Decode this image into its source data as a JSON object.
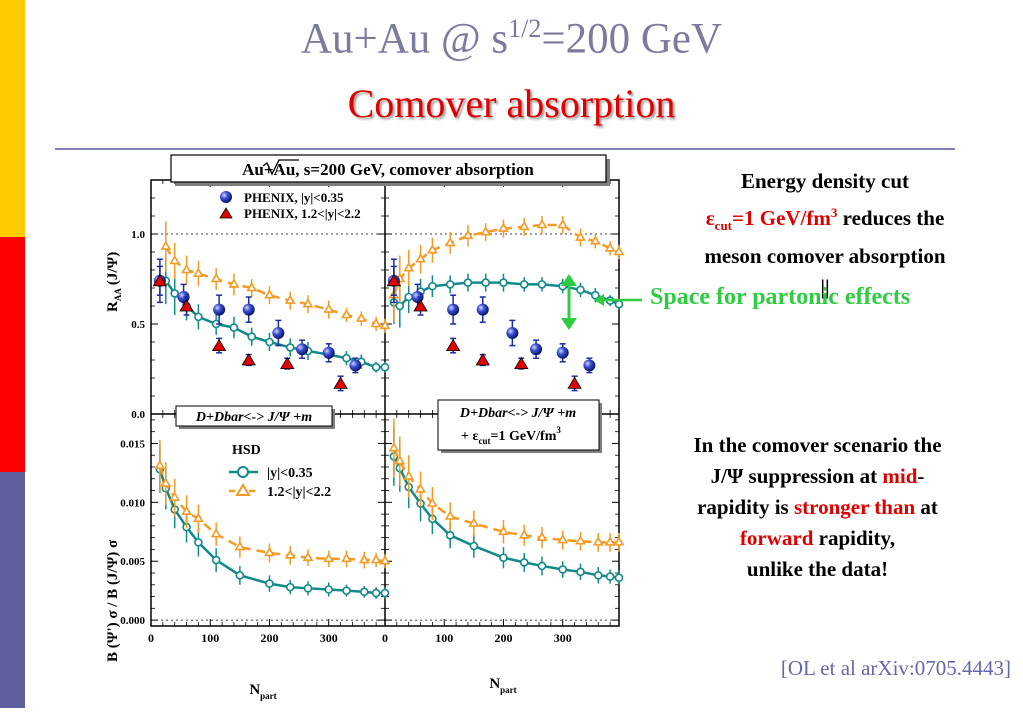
{
  "colors": {
    "stripe_yellow": "#ffcc00",
    "stripe_red": "#ff0000",
    "stripe_blue": "#5f5f9f",
    "title_gray": "#7b7b9e",
    "title_red": "#e00000",
    "teal": "#128a8a",
    "orange": "#f59a22",
    "navy": "#1a2ea0",
    "green": "#2ecc40"
  },
  "slide": {
    "title_line1_prefix": "Au+Au @ s",
    "title_line1_sup": "1/2",
    "title_line1_suffix": "=200 GeV",
    "title_line2": "Comover absorption",
    "energy_cut": {
      "line1": "Energy density cut",
      "eps": "ε",
      "cut_sub": "cut",
      "value": "=1 GeV/fm",
      "value_sup": "3",
      "line2_rest": " reduces the",
      "line3": "meson comover absorption",
      "line4": "||"
    },
    "space_label": "Space for partonic effects",
    "comover_note": {
      "line1": "In the comover scenario the",
      "line2_a": "J/Ψ suppression at ",
      "line2_red": "mid",
      "line2_b": "-",
      "line3_a": "rapidity is ",
      "line3_red": "stronger than",
      "line3_b": " at",
      "line4_red": "forward",
      "line4_b": " rapidity,",
      "line5": "unlike the data!"
    },
    "citation": "[OL et al arXiv:0705.4443]"
  },
  "figure": {
    "header_box": "Au+Au,   s=200 GeV,    comover absorption",
    "box_left_bottom": "D+Dbar<-> J/Ψ +m",
    "box_right_bottom_line1": "D+Dbar<-> J/Ψ +m",
    "box_right_bottom_line2_a": "+ ε",
    "box_right_bottom_line2_sub": "cut",
    "box_right_bottom_line2_b": "=1 GeV/fm",
    "box_right_bottom_line2_sup": "3",
    "legend_hsd": "HSD",
    "legend_mid": "|y|<0.35",
    "legend_fwd": "1.2<|y|<2.2",
    "legend_phenix_mid": "PHENIX, |y|<0.35",
    "legend_phenix_fwd": "PHENIX, 1.2<|y|<2.2",
    "ylabel_top": "R",
    "ylabel_top_sub": "AA",
    "ylabel_top_rest": "(J/Ψ)",
    "ylabel_bottom": "B  (Ψ') σ  / B  (J/Ψ) σ",
    "xlabel": "N",
    "xlabel_sub": "part",
    "top_yticks": [
      "0.0",
      "0.5",
      "1.0"
    ],
    "bottom_yticks": [
      "0.000",
      "0.005",
      "0.010",
      "0.015"
    ],
    "xticks_left": [
      "0",
      "100",
      "200",
      "300"
    ],
    "xticks_right": [
      "0",
      "100",
      "200",
      "300"
    ]
  },
  "chart_data": [
    {
      "type": "line",
      "panel": "top-left",
      "xlabel": "N_part",
      "ylabel": "R_AA(J/Ψ)",
      "xlim": [
        0,
        395
      ],
      "ylim": [
        0,
        1.3
      ],
      "series": [
        {
          "name": "HSD |y|<0.35",
          "style": "solid-circle",
          "x": [
            25,
            40,
            60,
            80,
            110,
            140,
            170,
            200,
            235,
            265,
            300,
            330,
            355,
            380,
            395
          ],
          "y": [
            0.74,
            0.67,
            0.6,
            0.54,
            0.5,
            0.48,
            0.43,
            0.4,
            0.37,
            0.35,
            0.33,
            0.31,
            0.29,
            0.26,
            0.26
          ],
          "err": [
            0.13,
            0.12,
            0.08,
            0.07,
            0.06,
            0.06,
            0.05,
            0.05,
            0.05,
            0.05,
            0.04,
            0.04,
            0.04,
            0.03,
            0.03
          ]
        },
        {
          "name": "HSD 1.2<|y|<2.2",
          "style": "dashed-triangle",
          "x": [
            25,
            40,
            60,
            80,
            110,
            140,
            170,
            200,
            235,
            265,
            300,
            330,
            355,
            380,
            395
          ],
          "y": [
            0.93,
            0.85,
            0.8,
            0.78,
            0.75,
            0.72,
            0.7,
            0.66,
            0.63,
            0.61,
            0.58,
            0.55,
            0.53,
            0.5,
            0.49
          ],
          "err": [
            0.14,
            0.1,
            0.08,
            0.07,
            0.06,
            0.06,
            0.05,
            0.05,
            0.05,
            0.05,
            0.05,
            0.04,
            0.04,
            0.04,
            0.04
          ]
        },
        {
          "name": "PHENIX, |y|<0.35",
          "style": "blue-ball",
          "x": [
            15,
            55,
            115,
            165,
            215,
            255,
            300,
            345
          ],
          "y": [
            0.74,
            0.65,
            0.58,
            0.58,
            0.45,
            0.36,
            0.34,
            0.27
          ],
          "err": [
            0.12,
            0.07,
            0.08,
            0.07,
            0.07,
            0.05,
            0.05,
            0.04
          ]
        },
        {
          "name": "PHENIX, 1.2<|y|<2.2",
          "style": "red-triangle",
          "x": [
            15,
            60,
            115,
            165,
            230,
            320
          ],
          "y": [
            0.74,
            0.6,
            0.38,
            0.3,
            0.28,
            0.17
          ],
          "err": [
            0.08,
            0.05,
            0.04,
            0.03,
            0.03,
            0.04
          ]
        }
      ]
    },
    {
      "type": "line",
      "panel": "top-right",
      "xlabel": "N_part",
      "ylabel": "R_AA(J/Ψ)",
      "xlim": [
        0,
        395
      ],
      "ylim": [
        0,
        1.3
      ],
      "series": [
        {
          "name": "HSD |y|<0.35",
          "style": "solid-circle",
          "x": [
            15,
            25,
            40,
            60,
            80,
            110,
            140,
            170,
            200,
            235,
            265,
            300,
            330,
            355,
            380,
            395
          ],
          "y": [
            0.62,
            0.6,
            0.65,
            0.68,
            0.71,
            0.72,
            0.73,
            0.73,
            0.73,
            0.72,
            0.72,
            0.71,
            0.69,
            0.66,
            0.63,
            0.61
          ],
          "err": [
            0.12,
            0.12,
            0.09,
            0.07,
            0.06,
            0.05,
            0.05,
            0.05,
            0.05,
            0.04,
            0.04,
            0.04,
            0.04,
            0.04,
            0.03,
            0.03
          ]
        },
        {
          "name": "HSD 1.2<|y|<2.2",
          "style": "dashed-triangle",
          "x": [
            15,
            25,
            40,
            60,
            80,
            110,
            140,
            170,
            200,
            235,
            265,
            300,
            330,
            355,
            380,
            395
          ],
          "y": [
            0.66,
            0.75,
            0.81,
            0.86,
            0.91,
            0.95,
            0.99,
            1.01,
            1.03,
            1.04,
            1.05,
            1.05,
            0.98,
            0.96,
            0.92,
            0.9
          ],
          "err": [
            0.15,
            0.13,
            0.1,
            0.08,
            0.07,
            0.06,
            0.06,
            0.05,
            0.05,
            0.05,
            0.05,
            0.05,
            0.05,
            0.04,
            0.04,
            0.04
          ]
        },
        {
          "name": "PHENIX, |y|<0.35",
          "style": "blue-ball",
          "x": [
            15,
            55,
            115,
            165,
            215,
            255,
            300,
            345
          ],
          "y": [
            0.74,
            0.65,
            0.58,
            0.58,
            0.45,
            0.36,
            0.34,
            0.27
          ],
          "err": [
            0.12,
            0.07,
            0.08,
            0.07,
            0.07,
            0.05,
            0.05,
            0.04
          ]
        },
        {
          "name": "PHENIX, 1.2<|y|<2.2",
          "style": "red-triangle",
          "x": [
            15,
            60,
            115,
            165,
            230,
            320
          ],
          "y": [
            0.74,
            0.6,
            0.38,
            0.3,
            0.28,
            0.17
          ],
          "err": [
            0.08,
            0.05,
            0.04,
            0.03,
            0.03,
            0.04
          ]
        }
      ]
    },
    {
      "type": "line",
      "panel": "bottom-left",
      "xlabel": "N_part",
      "ylabel": "B_μμ(Ψ') σ_Ψ' / B_μμ(J/Ψ) σ_J/Ψ",
      "xlim": [
        0,
        395
      ],
      "ylim": [
        -0.0005,
        0.0175
      ],
      "series": [
        {
          "name": "|y|<0.35",
          "style": "solid-circle",
          "x": [
            15,
            25,
            40,
            60,
            80,
            110,
            150,
            200,
            235,
            265,
            300,
            330,
            360,
            380,
            395
          ],
          "y": [
            0.0128,
            0.0112,
            0.0094,
            0.0079,
            0.0066,
            0.0051,
            0.0038,
            0.0031,
            0.0028,
            0.0027,
            0.0026,
            0.0025,
            0.0024,
            0.0023,
            0.0023
          ],
          "err": [
            0.002,
            0.0018,
            0.0016,
            0.0013,
            0.0012,
            0.001,
            0.0008,
            0.0007,
            0.0006,
            0.0006,
            0.0006,
            0.0005,
            0.0005,
            0.0005,
            0.0005
          ]
        },
        {
          "name": "1.2<|y|<2.2",
          "style": "dashed-triangle",
          "x": [
            15,
            25,
            40,
            60,
            80,
            110,
            150,
            200,
            235,
            265,
            300,
            330,
            360,
            380,
            395
          ],
          "y": [
            0.0131,
            0.0116,
            0.0104,
            0.0092,
            0.0086,
            0.0073,
            0.0062,
            0.0057,
            0.0055,
            0.0053,
            0.0052,
            0.0052,
            0.0051,
            0.0051,
            0.005
          ],
          "err": [
            0.0022,
            0.0018,
            0.0016,
            0.0014,
            0.0012,
            0.001,
            0.0009,
            0.0008,
            0.0008,
            0.0007,
            0.0007,
            0.0007,
            0.0007,
            0.0006,
            0.0006
          ]
        }
      ]
    },
    {
      "type": "line",
      "panel": "bottom-right",
      "xlabel": "N_part",
      "ylabel": "B_μμ(Ψ') σ_Ψ' / B_μμ(J/Ψ) σ_J/Ψ",
      "xlim": [
        0,
        395
      ],
      "ylim": [
        -0.0005,
        0.0175
      ],
      "series": [
        {
          "name": "|y|<0.35",
          "style": "solid-circle",
          "x": [
            15,
            25,
            40,
            60,
            80,
            110,
            150,
            200,
            235,
            265,
            300,
            330,
            360,
            380,
            395
          ],
          "y": [
            0.0139,
            0.0129,
            0.0113,
            0.0099,
            0.0086,
            0.0072,
            0.0063,
            0.0053,
            0.0049,
            0.0046,
            0.0043,
            0.0041,
            0.0038,
            0.0037,
            0.0036
          ],
          "err": [
            0.0025,
            0.002,
            0.0018,
            0.0015,
            0.0013,
            0.0011,
            0.001,
            0.0009,
            0.0008,
            0.0008,
            0.0007,
            0.0007,
            0.0007,
            0.0006,
            0.0006
          ]
        },
        {
          "name": "1.2<|y|<2.2",
          "style": "dashed-triangle",
          "x": [
            15,
            25,
            40,
            60,
            80,
            110,
            150,
            200,
            235,
            265,
            300,
            330,
            360,
            380,
            395
          ],
          "y": [
            0.0146,
            0.0135,
            0.0122,
            0.0111,
            0.0099,
            0.0088,
            0.0082,
            0.0075,
            0.0072,
            0.007,
            0.0068,
            0.0067,
            0.0066,
            0.0066,
            0.0066
          ],
          "err": [
            0.0025,
            0.0021,
            0.0018,
            0.0015,
            0.0014,
            0.0012,
            0.0011,
            0.001,
            0.0009,
            0.0009,
            0.0008,
            0.0008,
            0.0008,
            0.0008,
            0.0008
          ]
        }
      ]
    }
  ]
}
